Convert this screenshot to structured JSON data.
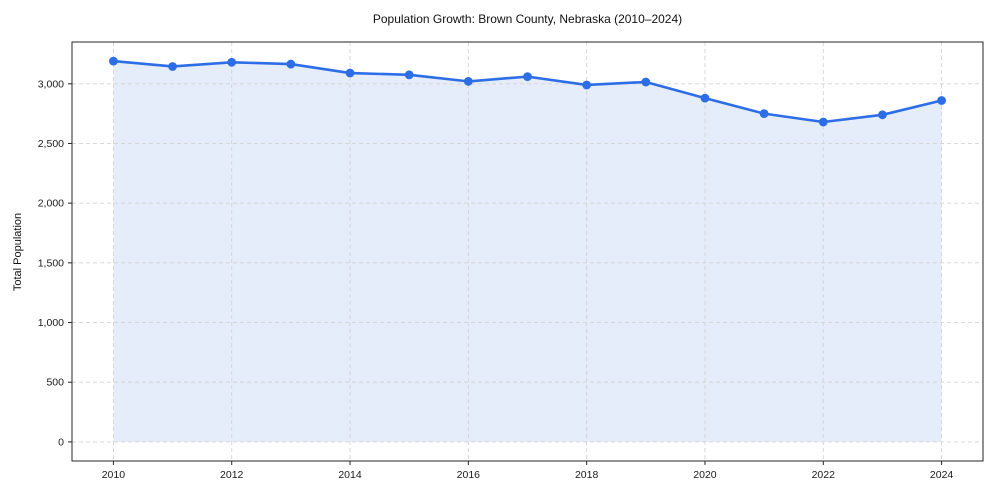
{
  "chart_data": {
    "type": "line",
    "title": "Population Growth: Brown County, Nebraska (2010–2024)",
    "xlabel": "",
    "ylabel": "Total Population",
    "x": [
      2010,
      2011,
      2012,
      2013,
      2014,
      2015,
      2016,
      2017,
      2018,
      2019,
      2020,
      2021,
      2022,
      2023,
      2024
    ],
    "series": [
      {
        "name": "Total Population",
        "values": [
          3190,
          3145,
          3180,
          3165,
          3090,
          3075,
          3020,
          3060,
          2990,
          3015,
          2880,
          2750,
          2680,
          2740,
          2860
        ]
      }
    ],
    "xticks": [
      2010,
      2012,
      2014,
      2016,
      2018,
      2020,
      2022,
      2024
    ],
    "xtick_labels": [
      "2010",
      "2012",
      "2014",
      "2016",
      "2018",
      "2020",
      "2022",
      "2024"
    ],
    "yticks": [
      0,
      500,
      1000,
      1500,
      2000,
      2500,
      3000
    ],
    "ytick_labels": [
      "0",
      "500",
      "1,000",
      "1,500",
      "2,000",
      "2,500",
      "3,000"
    ],
    "xlim": [
      2009.3,
      2024.7
    ],
    "ylim": [
      -160,
      3350
    ],
    "grid": true,
    "grid_style": "dashed",
    "legend": false,
    "marker": "circle",
    "area_fill_to_zero": true,
    "colors": {
      "line": "#2d6ee6",
      "marker": "#2d6ee6",
      "area_fill": "#e5ecfa",
      "grid": "#d4d4d4",
      "axis": "#262626",
      "text": "#1a1a1a",
      "background": "#ffffff"
    }
  }
}
